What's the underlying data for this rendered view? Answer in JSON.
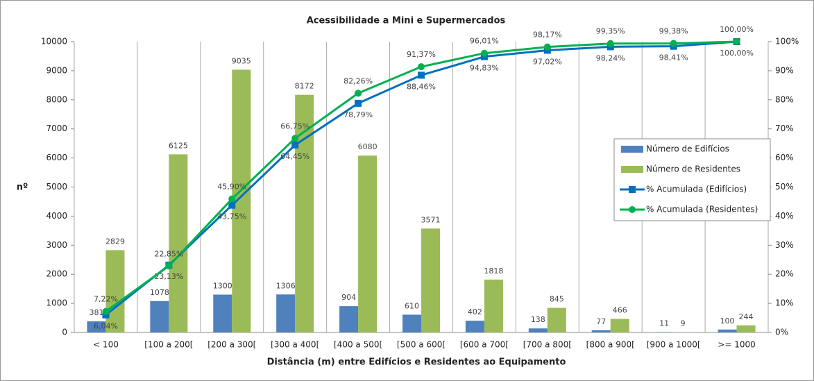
{
  "chart_data": {
    "type": "bar",
    "title": "Acessibilidade a Mini e Supermercados",
    "x_label": "Distância (m) entre Edifícios e Residentes ao Equipamento",
    "y_label": "nº",
    "categories": [
      "< 100",
      "[100 a 200[",
      "[200 a 300[",
      "[300 a 400[",
      "[400 a 500[",
      "[500 a 600[",
      "[600 a 700[",
      "[700 a 800[",
      "[800 a 900[",
      "[900 a 1000[",
      ">= 1000"
    ],
    "series": [
      {
        "name": "Número de Edifícios",
        "type": "bar",
        "color": "#4f81bd",
        "values": [
          381,
          1078,
          1300,
          1306,
          904,
          610,
          402,
          138,
          77,
          11,
          100
        ]
      },
      {
        "name": "Número de Residentes",
        "type": "bar",
        "color": "#9bbb59",
        "values": [
          2829,
          6125,
          9035,
          8172,
          6080,
          3571,
          1818,
          845,
          466,
          9,
          244
        ]
      },
      {
        "name": "% Acumulada (Edifícios)",
        "type": "line",
        "axis": "y2",
        "color": "#0070c0",
        "marker": "square",
        "values": [
          6.04,
          23.13,
          43.75,
          64.45,
          78.79,
          88.46,
          94.83,
          97.02,
          98.24,
          98.41,
          100.0
        ],
        "value_labels": [
          "6,04%",
          "23,13%",
          "43,75%",
          "64,45%",
          "78,79%",
          "88,46%",
          "94,83%",
          "97,02%",
          "98,24%",
          "98,41%",
          "100,00%"
        ]
      },
      {
        "name": "% Acumulada (Residentes)",
        "type": "line",
        "axis": "y2",
        "color": "#00b050",
        "marker": "circle",
        "values": [
          7.22,
          22.85,
          45.9,
          66.75,
          82.26,
          91.37,
          96.01,
          98.17,
          99.35,
          99.38,
          100.0
        ],
        "value_labels": [
          "7,22%",
          "22,85%",
          "45,90%",
          "66,75%",
          "82,26%",
          "91,37%",
          "96,01%",
          "98,17%",
          "99,35%",
          "99,38%",
          "100,00%"
        ]
      }
    ],
    "ylim": [
      0,
      10000
    ],
    "yticks": [
      0,
      1000,
      2000,
      3000,
      4000,
      5000,
      6000,
      7000,
      8000,
      9000,
      10000
    ],
    "y2lim": [
      0,
      100
    ],
    "y2ticks": [
      {
        "value": 0,
        "label": "0%"
      },
      {
        "value": 10,
        "label": "10%"
      },
      {
        "value": 20,
        "label": "20%"
      },
      {
        "value": 30,
        "label": "30%"
      },
      {
        "value": 40,
        "label": "40%"
      },
      {
        "value": 50,
        "label": "50%"
      },
      {
        "value": 60,
        "label": "60%"
      },
      {
        "value": 70,
        "label": "70%"
      },
      {
        "value": 80,
        "label": "80%"
      },
      {
        "value": 90,
        "label": "90%"
      },
      {
        "value": 100,
        "label": "100%"
      }
    ],
    "legend": "right"
  }
}
